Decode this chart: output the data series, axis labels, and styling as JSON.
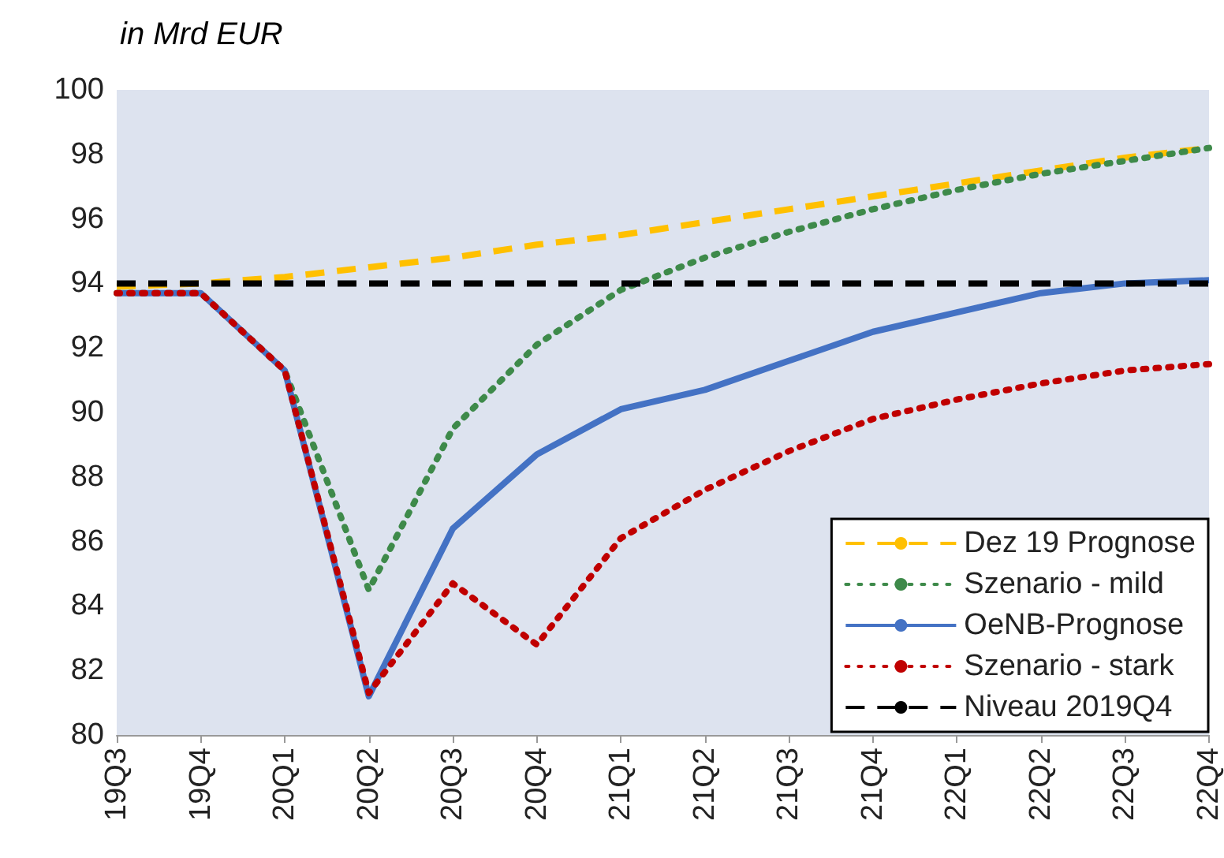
{
  "chart_data": {
    "type": "line",
    "ylabel": "in Mrd EUR",
    "categories": [
      "19Q3",
      "19Q4",
      "20Q1",
      "20Q2",
      "20Q3",
      "20Q4",
      "21Q1",
      "21Q2",
      "21Q3",
      "21Q4",
      "22Q1",
      "22Q2",
      "22Q3",
      "22Q4"
    ],
    "series": [
      {
        "name": "Dez 19 Prognose",
        "color": "#ffc000",
        "line_style": "dashed",
        "values": [
          93.9,
          94.0,
          94.2,
          94.5,
          94.8,
          95.2,
          95.5,
          95.9,
          96.3,
          96.7,
          97.1,
          97.5,
          97.9,
          98.2
        ]
      },
      {
        "name": "Szenario - mild",
        "color": "#3e8a4a",
        "line_style": "dotted",
        "values": [
          93.7,
          93.7,
          91.3,
          84.5,
          89.5,
          92.1,
          93.8,
          94.8,
          95.6,
          96.3,
          96.9,
          97.4,
          97.8,
          98.2
        ]
      },
      {
        "name": "OeNB-Prognose",
        "color": "#4472c4",
        "line_style": "solid",
        "values": [
          93.7,
          93.7,
          91.3,
          81.2,
          86.4,
          88.7,
          90.1,
          90.7,
          91.6,
          92.5,
          93.1,
          93.7,
          94.0,
          94.1
        ]
      },
      {
        "name": "Szenario - stark",
        "color": "#c00000",
        "line_style": "dotted",
        "values": [
          93.7,
          93.7,
          91.3,
          81.3,
          84.7,
          82.8,
          86.1,
          87.6,
          88.8,
          89.8,
          90.4,
          90.9,
          91.3,
          91.5
        ]
      },
      {
        "name": "Niveau 2019Q4",
        "color": "#000000",
        "line_style": "dashed",
        "values": [
          94,
          94,
          94,
          94,
          94,
          94,
          94,
          94,
          94,
          94,
          94,
          94,
          94,
          94
        ]
      }
    ],
    "ylim": [
      80,
      100
    ],
    "yticks": [
      80,
      82,
      84,
      86,
      88,
      90,
      92,
      94,
      96,
      98,
      100
    ],
    "grid": false,
    "legend": "bottom right",
    "marker": "none"
  }
}
